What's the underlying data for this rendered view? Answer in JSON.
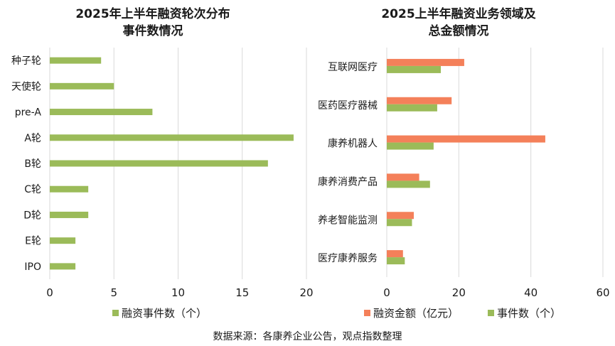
{
  "source_note": "数据来源：各康养企业公告，观点指数整理",
  "colors": {
    "events": "#9bbb59",
    "amount": "#f4805a",
    "grid": "#d9d9d9",
    "axis": "#7f7f7f"
  },
  "chart_data": [
    {
      "type": "bar",
      "orientation": "horizontal",
      "title_lines": [
        "2025年上半年融资轮次分布",
        "事件数情况"
      ],
      "categories": [
        "种子轮",
        "天使轮",
        "pre-A",
        "A轮",
        "B轮",
        "C轮",
        "D轮",
        "E轮",
        "IPO"
      ],
      "series": [
        {
          "name": "融资事件数（个）",
          "values": [
            4,
            5,
            8,
            19,
            17,
            3,
            3,
            2,
            2
          ]
        }
      ],
      "xlim": [
        0,
        20
      ],
      "xticks": [
        0,
        5,
        10,
        15,
        20
      ],
      "grid": true,
      "legend": "bottom"
    },
    {
      "type": "bar",
      "orientation": "horizontal",
      "title_lines": [
        "2025上半年融资业务领域及",
        "总金额情况"
      ],
      "categories": [
        "互联网医疗",
        "医药医疗器械",
        "康养机器人",
        "康养消费产品",
        "养老智能监测",
        "医疗康养服务"
      ],
      "series": [
        {
          "name": "融资金额（亿元）",
          "values": [
            21.5,
            18,
            44,
            9,
            7.5,
            4.5
          ]
        },
        {
          "name": "事件数（个）",
          "values": [
            15,
            14,
            13,
            12,
            7,
            5
          ]
        }
      ],
      "xlim": [
        0,
        60
      ],
      "xticks": [
        0,
        20,
        40,
        60
      ],
      "grid": true,
      "legend": "bottom"
    }
  ]
}
